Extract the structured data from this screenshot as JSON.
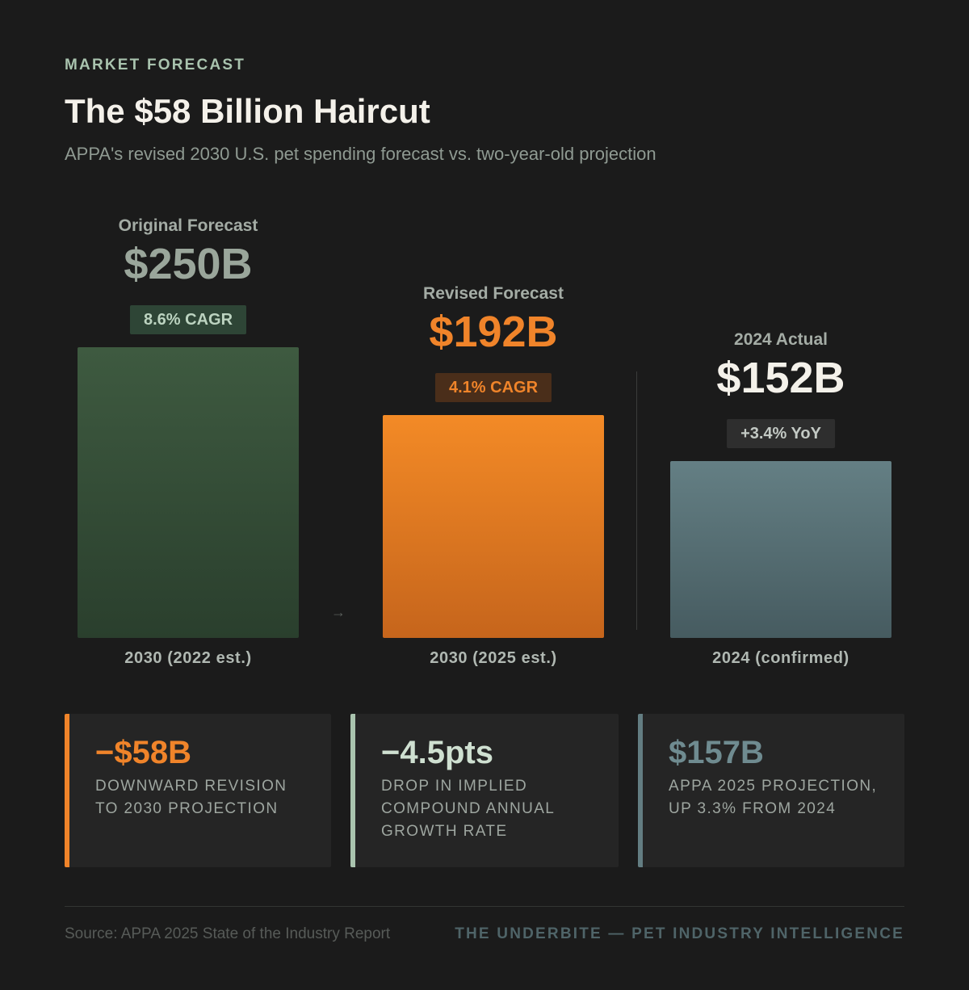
{
  "header": {
    "eyebrow": "MARKET FORECAST",
    "title": "The $58 Billion Haircut",
    "subtitle": "APPA's revised 2030 U.S. pet spending forecast vs. two-year-old projection"
  },
  "chart_data": {
    "type": "bar",
    "title": "The $58 Billion Haircut",
    "subtitle": "APPA's revised 2030 U.S. pet spending forecast vs. two-year-old projection",
    "unit": "B",
    "categories": [
      "2030 (2022 est.)",
      "2030 (2025 est.)",
      "2024 (confirmed)"
    ],
    "values": [
      250,
      192,
      152
    ],
    "bars": [
      {
        "label": "Original Forecast",
        "value_label": "$250B",
        "value": 250,
        "badge": "8.6% CAGR",
        "category": "2030 (2022 est.)",
        "colors": {
          "label": "#a4ac a5",
          "value": "#9aa69b",
          "badge_bg": "#2e4536",
          "badge_text": "#bcd3c0",
          "bar_top": "#3e5a40",
          "bar_bottom": "#2a3f2d"
        }
      },
      {
        "label": "Revised Forecast",
        "value_label": "$192B",
        "value": 192,
        "badge": "4.1% CAGR",
        "category": "2030 (2025 est.)",
        "colors": {
          "label": "#a4aca5",
          "value": "#f0842a",
          "badge_bg": "#4a2e1a",
          "badge_text": "#f0842a",
          "bar_top": "#f38a26",
          "bar_bottom": "#c6651c"
        }
      },
      {
        "label": "2024 Actual",
        "value_label": "$152B",
        "value": 152,
        "badge": "+3.4% YoY",
        "category": "2024 (confirmed)",
        "colors": {
          "label": "#a4aca5",
          "value": "#f4f1ea",
          "badge_bg": "#2e2e2e",
          "badge_text": "#c3c9c4",
          "bar_top": "#647f84",
          "bar_bottom": "#465b60"
        }
      }
    ],
    "arrow_glyph": "→",
    "grid": false,
    "legend": "none"
  },
  "cards": [
    {
      "value": "−$58B",
      "desc": "DOWNWARD REVISION TO 2030 PROJECTION",
      "accent": "#f0842a",
      "value_color": "#f0842a"
    },
    {
      "value": "−4.5pts",
      "desc": "DROP IN IMPLIED COMPOUND ANNUAL GROWTH RATE",
      "accent": "#a9c3ae",
      "value_color": "#cfe0d1"
    },
    {
      "value": "$157B",
      "desc": "APPA 2025 PROJECTION, UP 3.3% FROM 2024",
      "accent": "#637d82",
      "value_color": "#6f8b90"
    }
  ],
  "footer": {
    "source": "Source: APPA 2025 State of the Industry Report",
    "brand": "THE UNDERBITE — PET INDUSTRY INTELLIGENCE"
  }
}
